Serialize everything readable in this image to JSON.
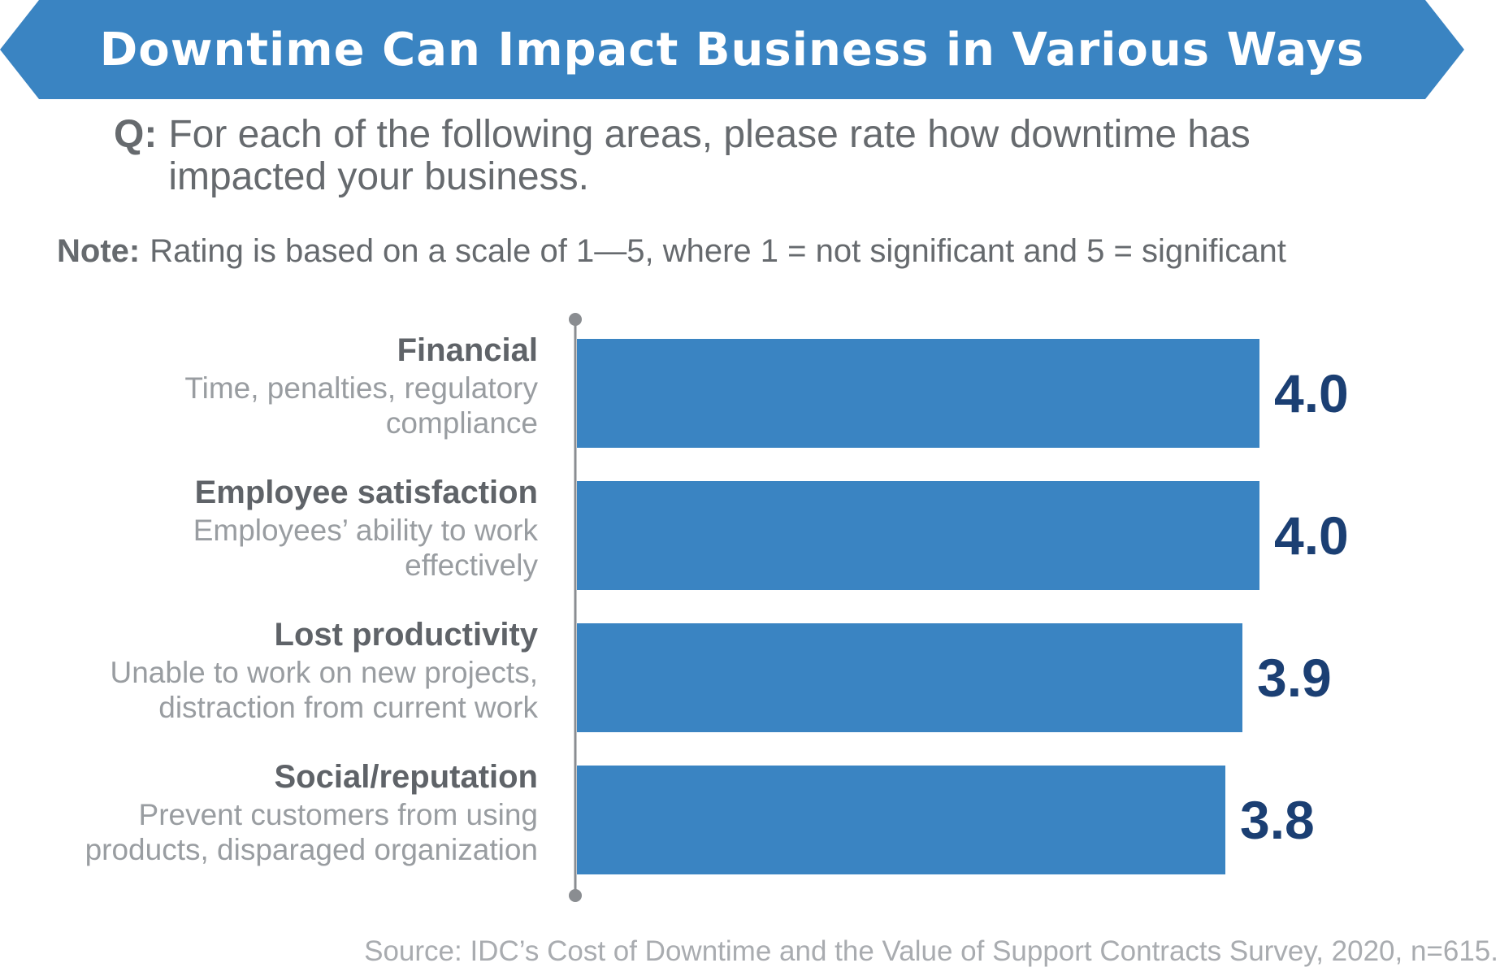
{
  "banner": {
    "title": "Downtime Can Impact Business in Various Ways"
  },
  "question": {
    "label": "Q:",
    "text": "For each of the following areas, please rate how downtime has impacted your business."
  },
  "note": {
    "label": "Note:",
    "text": "Rating is based on a scale of 1—5, where 1 = not significant and 5 = significant"
  },
  "chart_data": {
    "type": "bar",
    "orientation": "horizontal",
    "categories": [
      {
        "title": "Financial",
        "description": [
          "Time, penalties, regulatory",
          "compliance"
        ]
      },
      {
        "title": "Employee satisfaction",
        "description": [
          "Employees’ ability to work",
          "effectively"
        ]
      },
      {
        "title": "Lost productivity",
        "description": [
          "Unable to work on new projects,",
          "distraction from current work"
        ]
      },
      {
        "title": "Social/reputation",
        "description": [
          "Prevent customers from using",
          "products, disparaged organization"
        ]
      }
    ],
    "values": [
      4.0,
      4.0,
      3.9,
      3.8
    ],
    "value_labels": [
      "4.0",
      "4.0",
      "3.9",
      "3.8"
    ],
    "xlim": [
      0,
      5
    ],
    "bar_color": "#3a84c2",
    "label_color": "#1b3f73",
    "axis_color": "#8a8d91",
    "grid": false,
    "legend": "none"
  },
  "source": "Source: IDC’s Cost of Downtime and the Value of Support Contracts Survey, 2020, n=615."
}
